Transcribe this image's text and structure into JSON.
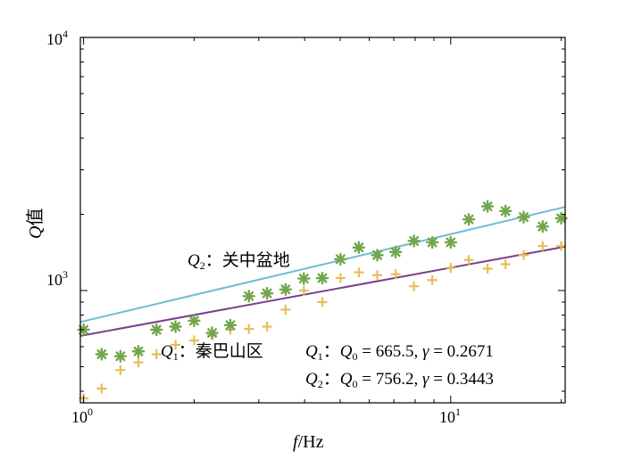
{
  "chart_data": {
    "type": "scatter",
    "x_scale": "log",
    "y_scale": "log",
    "xlim": [
      0.98,
      20.5
    ],
    "ylim": [
      360,
      10000
    ],
    "xlabel": {
      "italic": "f",
      "rest": "/Hz"
    },
    "ylabel": {
      "italic": "Q",
      "rest": "值"
    },
    "xticks": [
      {
        "value": 1,
        "base": "10",
        "exp": "0"
      },
      {
        "value": 10,
        "base": "10",
        "exp": "1"
      }
    ],
    "yticks": [
      {
        "value": 1000,
        "base": "10",
        "exp": "3"
      },
      {
        "value": 10000,
        "base": "10",
        "exp": "4"
      }
    ],
    "series": [
      {
        "name": "Q1",
        "region": "秦巴山区",
        "marker": "plus",
        "marker_color": "#E6BE5A",
        "x": [
          1.0,
          1.12,
          1.26,
          1.41,
          1.58,
          1.78,
          2.0,
          2.24,
          2.51,
          2.82,
          3.16,
          3.55,
          3.98,
          4.47,
          5.01,
          5.62,
          6.31,
          7.08,
          7.94,
          8.91,
          10.0,
          11.2,
          12.6,
          14.1,
          15.8,
          17.8,
          20.0
        ],
        "y": [
          375,
          410,
          485,
          520,
          560,
          610,
          635,
          665,
          700,
          705,
          720,
          840,
          1000,
          900,
          1120,
          1180,
          1150,
          1160,
          1040,
          1100,
          1230,
          1320,
          1220,
          1270,
          1380,
          1500,
          1500
        ],
        "fit": {
          "Q0": 665.5,
          "gamma": 0.2671,
          "color": "#7B3F8C"
        }
      },
      {
        "name": "Q2",
        "region": "关中盆地",
        "marker": "asterisk",
        "marker_color": "#72A64B",
        "x": [
          1.0,
          1.12,
          1.26,
          1.41,
          1.58,
          1.78,
          2.0,
          2.24,
          2.51,
          2.82,
          3.16,
          3.55,
          3.98,
          4.47,
          5.01,
          5.62,
          6.31,
          7.08,
          7.94,
          8.91,
          10.0,
          11.2,
          12.6,
          14.1,
          15.8,
          17.8,
          20.0
        ],
        "y": [
          700,
          560,
          550,
          575,
          700,
          720,
          760,
          680,
          730,
          950,
          975,
          1010,
          1115,
          1120,
          1330,
          1480,
          1380,
          1420,
          1570,
          1550,
          1550,
          1910,
          2150,
          2060,
          1950,
          1790,
          1930
        ],
        "fit": {
          "Q0": 756.2,
          "gamma": 0.3443,
          "color": "#6FBCD4"
        }
      }
    ],
    "annotations": {
      "q2_label": {
        "q": "Q",
        "sub": "2",
        "sep": "：",
        "name": "关中盆地"
      },
      "q1_label": {
        "q": "Q",
        "sub": "1",
        "sep": "：",
        "name": "秦巴山区"
      },
      "eq1": {
        "q": "Q",
        "qsub": "1",
        "sep": "：",
        "q0": "Q",
        "q0sub": "0",
        "mid": " = 665.5, ",
        "gamma": "γ",
        "tail": " = 0.2671"
      },
      "eq2": {
        "q": "Q",
        "qsub": "2",
        "sep": "：",
        "q0": "Q",
        "q0sub": "0",
        "mid": " = 756.2, ",
        "gamma": "γ",
        "tail": " = 0.3443"
      }
    }
  }
}
